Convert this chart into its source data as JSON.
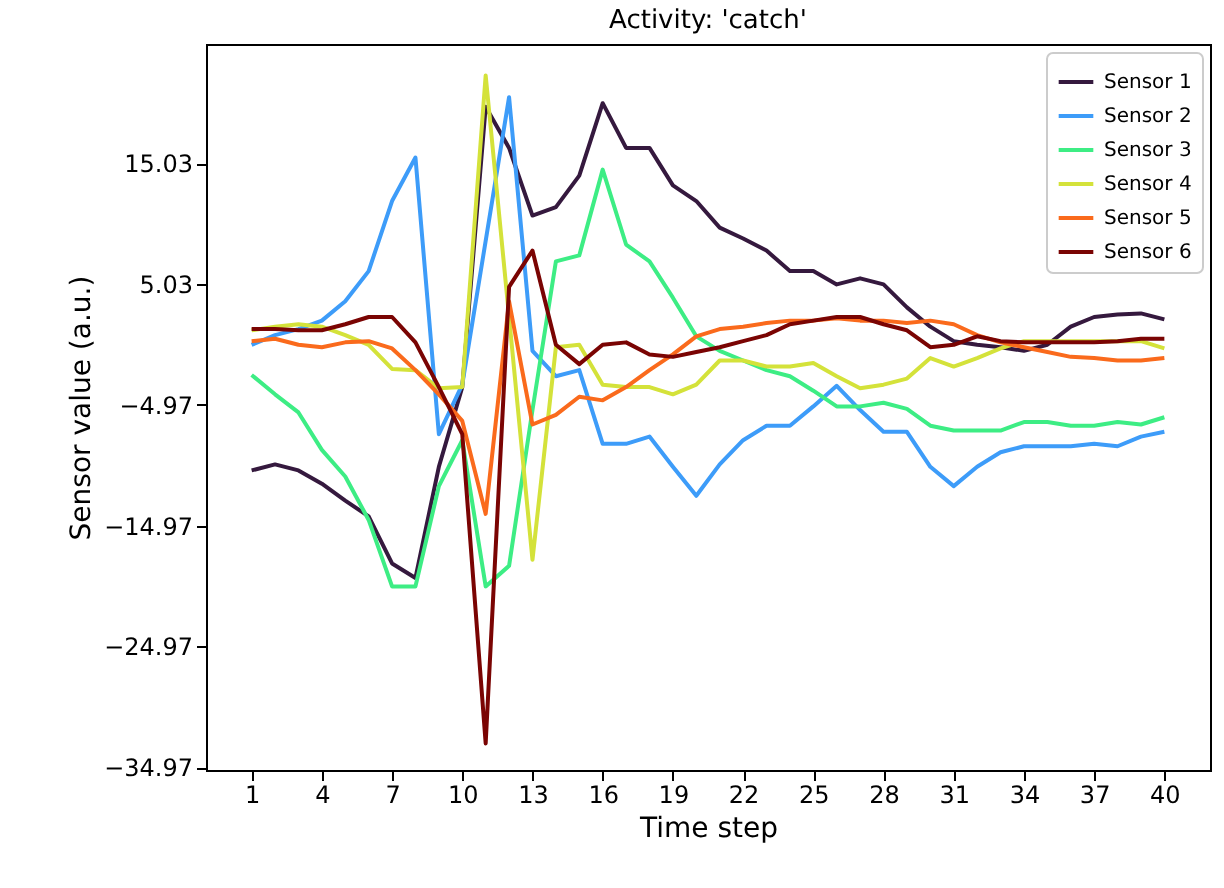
{
  "chart_data": {
    "type": "line",
    "title": "Activity: 'catch'",
    "xlabel": "Time step",
    "ylabel": "Sensor value (a.u.)",
    "x": [
      1,
      2,
      3,
      4,
      5,
      6,
      7,
      8,
      9,
      10,
      11,
      12,
      13,
      14,
      15,
      16,
      17,
      18,
      19,
      20,
      21,
      22,
      23,
      24,
      25,
      26,
      27,
      28,
      29,
      30,
      31,
      32,
      33,
      34,
      35,
      36,
      37,
      38,
      39,
      40
    ],
    "xlim": [
      -0.95,
      41.95
    ],
    "xticks": [
      1,
      4,
      7,
      10,
      13,
      16,
      19,
      22,
      25,
      28,
      31,
      34,
      37,
      40
    ],
    "ylim": [
      -35.2,
      24.9
    ],
    "yticks": [
      -34.97,
      -24.97,
      -14.97,
      -4.97,
      5.03,
      15.03
    ],
    "legend": "top right",
    "grid": false,
    "series": [
      {
        "name": "Sensor 1",
        "color": "#35193e",
        "values": [
          -10.4,
          -9.9,
          -10.4,
          -11.5,
          -12.9,
          -14.2,
          -18.1,
          -19.3,
          -10.1,
          -3.5,
          19.7,
          16.3,
          10.7,
          11.4,
          14.0,
          20.0,
          16.3,
          16.3,
          13.2,
          11.9,
          9.7,
          8.8,
          7.8,
          6.1,
          6.1,
          5.0,
          5.5,
          5.0,
          3.1,
          1.5,
          0.3,
          0.0,
          -0.2,
          -0.5,
          0.0,
          1.5,
          2.3,
          2.5,
          2.6,
          2.1
        ]
      },
      {
        "name": "Sensor 2",
        "color": "#3d9cf9",
        "values": [
          0.0,
          0.8,
          1.3,
          2.0,
          3.6,
          6.1,
          11.9,
          15.5,
          -7.4,
          -3.3,
          8.6,
          20.5,
          -0.5,
          -2.6,
          -2.1,
          -8.2,
          -8.2,
          -7.6,
          -10.1,
          -12.5,
          -9.9,
          -7.9,
          -6.7,
          -6.7,
          -5.1,
          -3.4,
          -5.4,
          -7.2,
          -7.2,
          -10.1,
          -11.7,
          -10.1,
          -8.9,
          -8.4,
          -8.4,
          -8.4,
          -8.2,
          -8.4,
          -7.6,
          -7.2
        ]
      },
      {
        "name": "Sensor 3",
        "color": "#3ded84",
        "values": [
          -2.5,
          -4.1,
          -5.6,
          -8.7,
          -10.9,
          -14.5,
          -20.0,
          -20.0,
          -11.7,
          -7.9,
          -20.0,
          -18.3,
          -5.4,
          6.9,
          7.4,
          14.5,
          8.3,
          6.9,
          3.9,
          0.7,
          -0.5,
          -1.3,
          -2.1,
          -2.6,
          -3.8,
          -5.1,
          -5.1,
          -4.8,
          -5.3,
          -6.7,
          -7.1,
          -7.1,
          -7.1,
          -6.4,
          -6.4,
          -6.7,
          -6.7,
          -6.4,
          -6.6,
          -6.0
        ]
      },
      {
        "name": "Sensor 4",
        "color": "#d4e23a",
        "values": [
          1.2,
          1.5,
          1.7,
          1.5,
          0.8,
          0.0,
          -2.0,
          -2.1,
          -3.6,
          -3.5,
          22.3,
          2.3,
          -17.8,
          -0.2,
          0.0,
          -3.3,
          -3.5,
          -3.5,
          -4.1,
          -3.3,
          -1.3,
          -1.3,
          -1.8,
          -1.8,
          -1.5,
          -2.6,
          -3.6,
          -3.3,
          -2.8,
          -1.1,
          -1.8,
          -1.1,
          -0.3,
          0.3,
          0.3,
          0.3,
          0.3,
          0.3,
          0.3,
          -0.3
        ]
      },
      {
        "name": "Sensor 5",
        "color": "#fa6a1c",
        "values": [
          0.3,
          0.5,
          0.0,
          -0.2,
          0.2,
          0.3,
          -0.3,
          -2.1,
          -4.1,
          -6.3,
          -14.0,
          3.6,
          -6.6,
          -5.8,
          -4.3,
          -4.6,
          -3.5,
          -2.1,
          -0.8,
          0.7,
          1.3,
          1.5,
          1.8,
          2.0,
          2.0,
          2.2,
          2.0,
          2.0,
          1.8,
          2.0,
          1.7,
          0.8,
          0.2,
          -0.2,
          -0.6,
          -1.0,
          -1.1,
          -1.3,
          -1.3,
          -1.1
        ]
      },
      {
        "name": "Sensor 6",
        "color": "#7a0403",
        "values": [
          1.3,
          1.3,
          1.2,
          1.2,
          1.7,
          2.3,
          2.3,
          0.2,
          -3.5,
          -7.4,
          -33.0,
          4.8,
          7.8,
          0.0,
          -1.6,
          0.0,
          0.2,
          -0.8,
          -1.0,
          -0.6,
          -0.2,
          0.3,
          0.8,
          1.7,
          2.0,
          2.3,
          2.3,
          1.7,
          1.2,
          -0.2,
          0.0,
          0.7,
          0.3,
          0.2,
          0.2,
          0.2,
          0.2,
          0.3,
          0.5,
          0.5
        ]
      }
    ]
  }
}
